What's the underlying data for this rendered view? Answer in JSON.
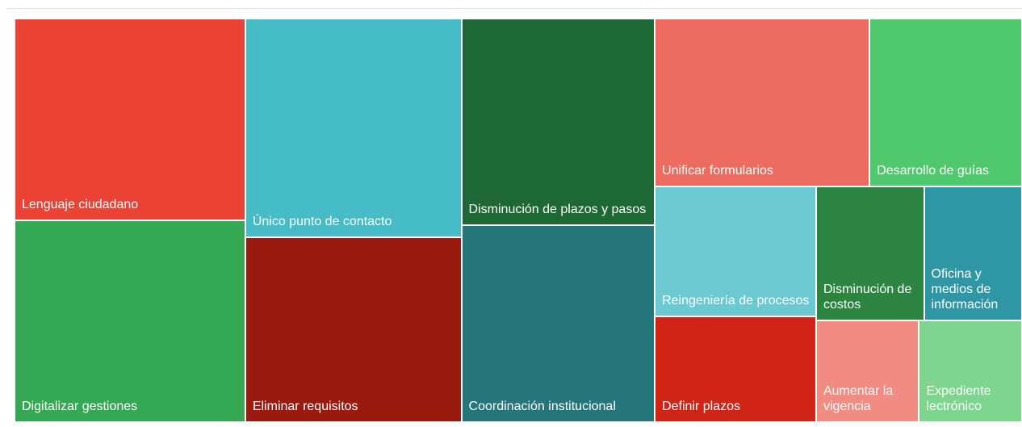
{
  "chart_data": {
    "type": "treemap",
    "categories": [
      "Lenguaje ciudadano",
      "Digitalizar gestiones",
      "Único punto de contacto",
      "Eliminar requisitos",
      "Disminución de plazos y pasos",
      "Coordinación institucional",
      "Unificar formularios",
      "Desarrollo de guías",
      "Reingeniería de procesos",
      "Definir plazos",
      "Disminución de costos",
      "Oficina y medios de información",
      "Aumentar la vigencia",
      "Expediente lectrónico"
    ],
    "values": [
      71,
      71,
      72,
      61,
      61,
      58,
      55,
      39,
      32,
      26,
      22,
      20,
      16,
      16
    ],
    "colors": [
      "#ea4335",
      "#34a853",
      "#46bdc6",
      "#9a1a10",
      "#1e6835",
      "#25767a",
      "#ee6b60",
      "#4fc86e",
      "#6bc9d1",
      "#d02516",
      "#2b8540",
      "#2f97a4",
      "#f28b82",
      "#7dd58e"
    ]
  }
}
